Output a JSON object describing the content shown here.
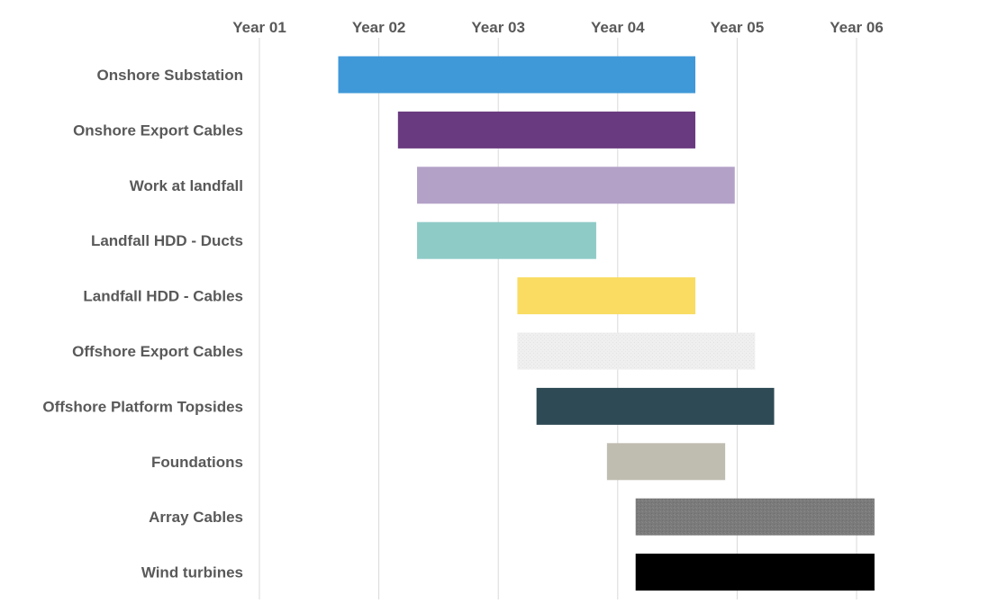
{
  "chart_data": {
    "type": "gantt",
    "x_axis": {
      "position": "top",
      "ticks": [
        "Year 01",
        "Year 02",
        "Year 03",
        "Year 04",
        "Year 05",
        "Year 06"
      ],
      "range": [
        1,
        7
      ],
      "grid": true
    },
    "tasks": [
      {
        "name": "Onshore Substation",
        "start": 1.66,
        "end": 4.65,
        "color": "#3f98d8",
        "texture": "none"
      },
      {
        "name": "Onshore Export Cables",
        "start": 2.16,
        "end": 4.65,
        "color": "#6a3a80",
        "texture": "none"
      },
      {
        "name": "Work at landfall",
        "start": 2.32,
        "end": 4.98,
        "color": "#b3a1c8",
        "texture": "none"
      },
      {
        "name": "Landfall HDD - Ducts",
        "start": 2.32,
        "end": 3.82,
        "color": "#8ecbc7",
        "texture": "none"
      },
      {
        "name": "Landfall HDD - Cables",
        "start": 3.16,
        "end": 4.65,
        "color": "#f9dc61",
        "texture": "none"
      },
      {
        "name": "Offshore Export Cables",
        "start": 3.16,
        "end": 5.15,
        "color": "#ededed",
        "texture": "dotted"
      },
      {
        "name": "Offshore Platform  Topsides",
        "start": 3.32,
        "end": 5.31,
        "color": "#2e4a55",
        "texture": "none"
      },
      {
        "name": "Foundations",
        "start": 3.91,
        "end": 4.9,
        "color": "#bfbcb0",
        "texture": "none"
      },
      {
        "name": "Array Cables",
        "start": 4.15,
        "end": 6.15,
        "color": "#7a7a7a",
        "texture": "speckled"
      },
      {
        "name": "Wind turbines",
        "start": 4.15,
        "end": 6.15,
        "color": "#000000",
        "texture": "none"
      }
    ],
    "legend": "none"
  }
}
